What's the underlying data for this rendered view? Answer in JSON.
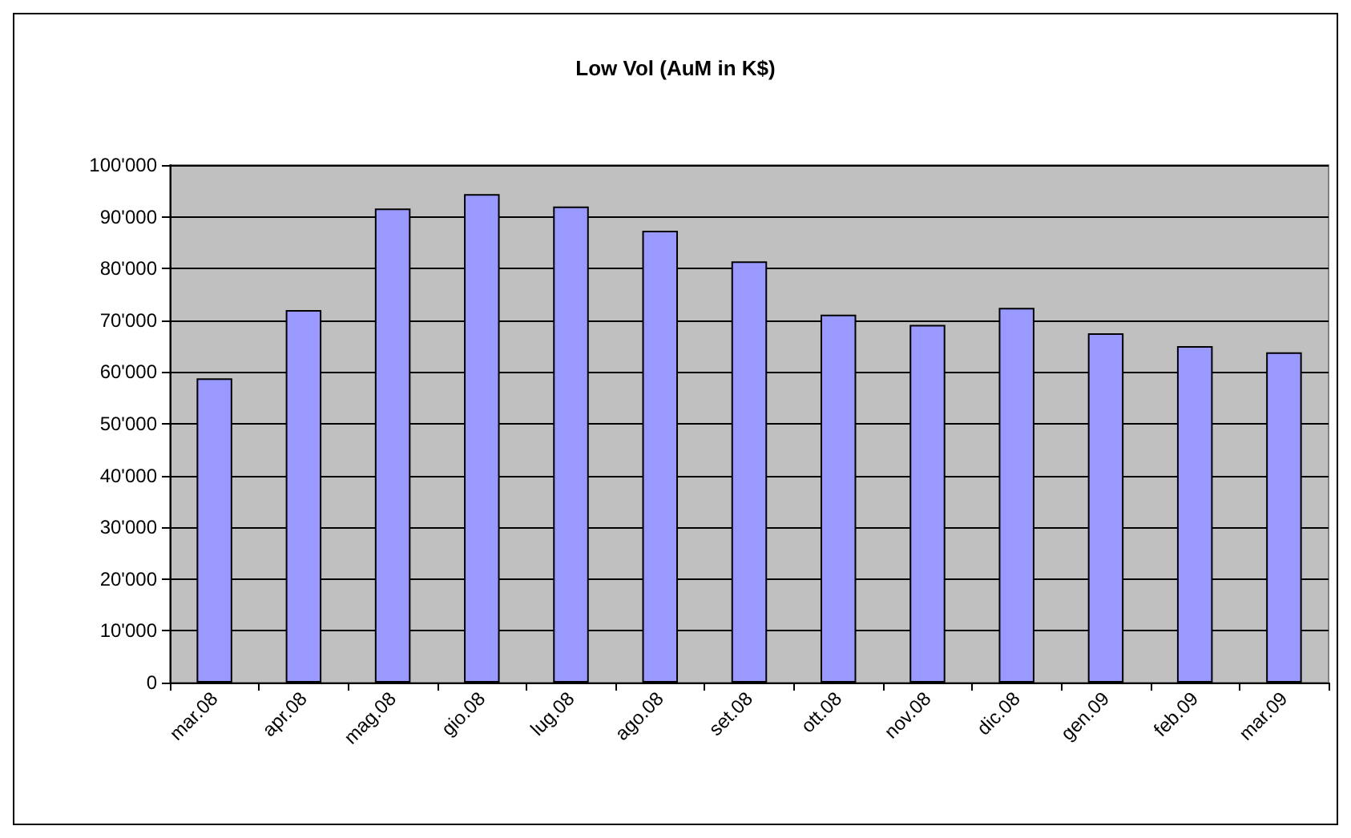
{
  "chart_data": {
    "type": "bar",
    "title": "Low Vol (AuM in K$)",
    "categories": [
      "mar.08",
      "apr.08",
      "mag.08",
      "gio.08",
      "lug.08",
      "ago.08",
      "set.08",
      "ott.08",
      "nov.08",
      "dic.08",
      "gen.09",
      "feb.09",
      "mar.09"
    ],
    "values": [
      58800,
      72000,
      91600,
      94400,
      92000,
      87300,
      81400,
      71100,
      69100,
      72400,
      67500,
      65000,
      63800
    ],
    "color": "#9999ff",
    "ylim": [
      0,
      100000
    ],
    "yticks": [
      {
        "value": 0,
        "label": "0"
      },
      {
        "value": 10000,
        "label": "10'000"
      },
      {
        "value": 20000,
        "label": "20'000"
      },
      {
        "value": 30000,
        "label": "30'000"
      },
      {
        "value": 40000,
        "label": "40'000"
      },
      {
        "value": 50000,
        "label": "50'000"
      },
      {
        "value": 60000,
        "label": "60'000"
      },
      {
        "value": 70000,
        "label": "70'000"
      },
      {
        "value": 80000,
        "label": "80'000"
      },
      {
        "value": 90000,
        "label": "90'000"
      },
      {
        "value": 100000,
        "label": "100'000"
      }
    ],
    "grid": "y"
  }
}
